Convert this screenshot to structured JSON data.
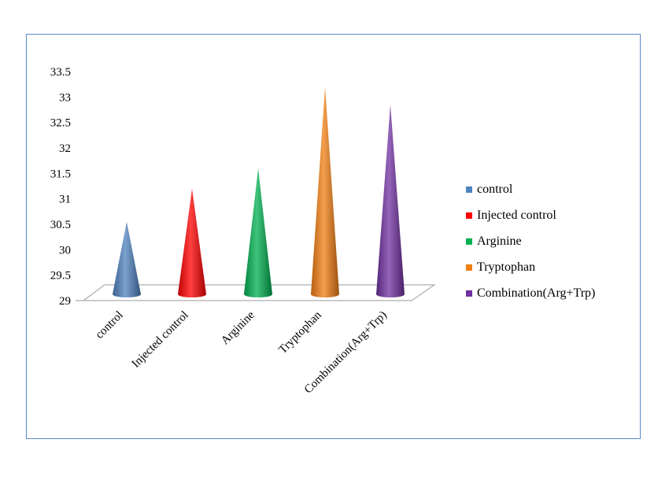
{
  "chart_data": {
    "type": "bar",
    "style": "3d-cone",
    "categories": [
      "control",
      "Injected control",
      "Arginine",
      "Tryptophan",
      "Combination(Arg+Trp)"
    ],
    "values": [
      30.55,
      31.2,
      31.6,
      33.2,
      32.85
    ],
    "colors": [
      "#4f81bd",
      "#ff0000",
      "#00b050",
      "#f07e12",
      "#7030a0"
    ],
    "ylim": [
      29,
      33.5
    ],
    "yticks": [
      "29",
      "29.5",
      "30",
      "30.5",
      "31",
      "31.5",
      "32",
      "32.5",
      "33",
      "33.5"
    ],
    "legend": {
      "position": "right",
      "entries": [
        "control",
        "Injected control",
        "Arginine",
        "Tryptophan",
        "Combination(Arg+Trp)"
      ]
    },
    "grid": false
  }
}
